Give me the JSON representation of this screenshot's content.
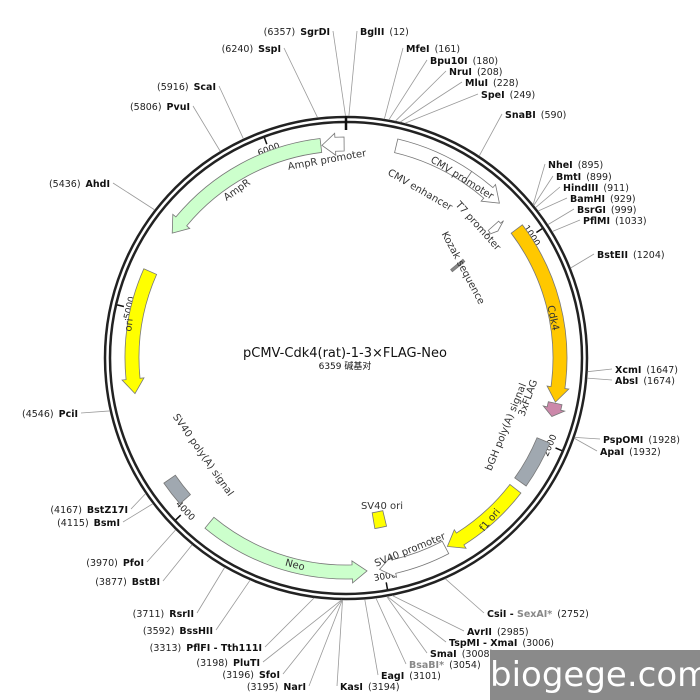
{
  "plasmid": {
    "name": "pCMV-Cdk4(rat)-1-3×FLAG-Neo",
    "size_label": "6359 碱基对",
    "length": 6359
  },
  "ticks": [
    "1000",
    "2000",
    "3000",
    "4000",
    "5000",
    "6000"
  ],
  "features": [
    {
      "name": "AmpR promoter",
      "start": 6245,
      "end": 6350,
      "dir": -1,
      "color": "#ffffff",
      "type": "arrow"
    },
    {
      "name": "AmpR",
      "start": 5400,
      "end": 6240,
      "dir": -1,
      "color": "#ccffcc",
      "type": "arrow"
    },
    {
      "name": "CMV enhancer",
      "start": 235,
      "end": 600,
      "dir": 0,
      "color": "#ffffff",
      "type": "box"
    },
    {
      "name": "CMV promoter",
      "start": 600,
      "end": 790,
      "dir": 1,
      "color": "#ffffff",
      "type": "arrow"
    },
    {
      "name": "T7 promoter",
      "start": 850,
      "end": 885,
      "dir": 1,
      "color": "#ffffff",
      "type": "arrow"
    },
    {
      "name": "Kozak sequence",
      "start": 885,
      "end": 895,
      "dir": 0,
      "color": "#888888",
      "type": "box"
    },
    {
      "name": "Cdk4",
      "start": 935,
      "end": 1800,
      "dir": 1,
      "color": "#ffc800",
      "type": "arrow"
    },
    {
      "name": "3xFLAG",
      "start": 1805,
      "end": 1870,
      "dir": 1,
      "color": "#cc88aa",
      "type": "arrow"
    },
    {
      "name": "bGH poly(A) signal",
      "start": 1990,
      "end": 2215,
      "dir": 0,
      "color": "#a0a8b0",
      "type": "box"
    },
    {
      "name": "f1 ori",
      "start": 2255,
      "end": 2680,
      "dir": 1,
      "color": "#ffff00",
      "type": "arrow"
    },
    {
      "name": "SV40 ori",
      "start": 2940,
      "end": 3010,
      "dir": 0,
      "color": "#ffff00",
      "type": "box"
    },
    {
      "name": "SV40 promoter",
      "start": 2690,
      "end": 3020,
      "dir": 1,
      "color": "#ffffff",
      "type": "arrow"
    },
    {
      "name": "Neo",
      "start": 3080,
      "end": 3880,
      "dir": -1,
      "color": "#ccffcc",
      "type": "arrow"
    },
    {
      "name": "SV40 poly(A) signal",
      "start": 4040,
      "end": 4160,
      "dir": 0,
      "color": "#a0a8b0",
      "type": "box"
    },
    {
      "name": "ori",
      "start": 4600,
      "end": 5190,
      "dir": -1,
      "color": "#ffff00",
      "type": "arrow"
    }
  ],
  "sites": [
    {
      "name": "BglII",
      "pos": 12,
      "label": "(12)"
    },
    {
      "name": "MfeI",
      "pos": 161,
      "label": "(161)"
    },
    {
      "name": "Bpu10I",
      "pos": 180,
      "label": "(180)"
    },
    {
      "name": "NruI",
      "pos": 208,
      "label": "(208)"
    },
    {
      "name": "MluI",
      "pos": 228,
      "label": "(228)"
    },
    {
      "name": "SpeI",
      "pos": 249,
      "label": "(249)"
    },
    {
      "name": "SnaBI",
      "pos": 590,
      "label": "(590)"
    },
    {
      "name": "NheI",
      "pos": 895,
      "label": "(895)"
    },
    {
      "name": "BmtI",
      "pos": 899,
      "label": "(899)"
    },
    {
      "name": "HindIII",
      "pos": 911,
      "label": "(911)"
    },
    {
      "name": "BamHI",
      "pos": 929,
      "label": "(929)"
    },
    {
      "name": "BsrGI",
      "pos": 999,
      "label": "(999)"
    },
    {
      "name": "PflMI",
      "pos": 1033,
      "label": "(1033)"
    },
    {
      "name": "BstEII",
      "pos": 1204,
      "label": "(1204)"
    },
    {
      "name": "XcmI",
      "pos": 1647,
      "label": "(1647)"
    },
    {
      "name": "AbsI",
      "pos": 1674,
      "label": "(1674)"
    },
    {
      "name": "PspOMI",
      "pos": 1928,
      "label": "(1928)"
    },
    {
      "name": "ApaI",
      "pos": 1932,
      "label": "(1932)"
    },
    {
      "name": "CsiI - ",
      "extra": "SexAI*",
      "pos": 2752,
      "label": "(2752)"
    },
    {
      "name": "AvrII",
      "pos": 2985,
      "label": "(2985)"
    },
    {
      "name": "TspMI - XmaI",
      "pos": 3006,
      "label": "(3006)"
    },
    {
      "name": "SmaI",
      "pos": 3008,
      "label": "(3008)"
    },
    {
      "name": "BsaBI*",
      "pos": 3054,
      "label": "(3054)",
      "gray": true
    },
    {
      "name": "EagI",
      "pos": 3101,
      "label": "(3101)"
    },
    {
      "name": "KasI",
      "pos": 3194,
      "label": "(3194)"
    },
    {
      "name": "NarI",
      "pos": 3195,
      "label": "(3195)"
    },
    {
      "name": "SfoI",
      "pos": 3196,
      "label": "(3196)"
    },
    {
      "name": "PluTI",
      "pos": 3198,
      "label": "(3198)"
    },
    {
      "name": "PflFI - Tth111I",
      "pos": 3313,
      "label": "(3313)"
    },
    {
      "name": "BssHII",
      "pos": 3592,
      "label": "(3592)"
    },
    {
      "name": "RsrII",
      "pos": 3711,
      "label": "(3711)"
    },
    {
      "name": "BstBI",
      "pos": 3877,
      "label": "(3877)"
    },
    {
      "name": "PfoI",
      "pos": 3970,
      "label": "(3970)"
    },
    {
      "name": "BsmI",
      "pos": 4115,
      "label": "(4115)"
    },
    {
      "name": "BstZ17I",
      "pos": 4167,
      "label": "(4167)"
    },
    {
      "name": "PciI",
      "pos": 4546,
      "label": "(4546)"
    },
    {
      "name": "AhdI",
      "pos": 5436,
      "label": "(5436)"
    },
    {
      "name": "PvuI",
      "pos": 5806,
      "label": "(5806)"
    },
    {
      "name": "ScaI",
      "pos": 5916,
      "label": "(5916)"
    },
    {
      "name": "SspI",
      "pos": 6240,
      "label": "(6240)"
    },
    {
      "name": "SgrDI",
      "pos": 6357,
      "label": "(6357)"
    }
  ],
  "watermark": "biogege.com"
}
